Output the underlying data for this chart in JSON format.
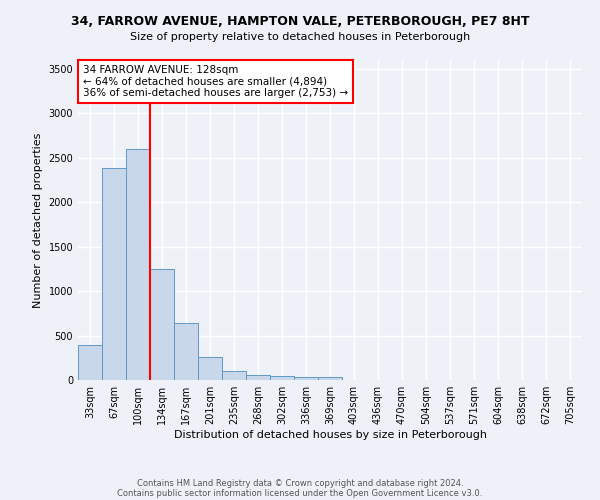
{
  "title_line1": "34, FARROW AVENUE, HAMPTON VALE, PETERBOROUGH, PE7 8HT",
  "title_line2": "Size of property relative to detached houses in Peterborough",
  "xlabel": "Distribution of detached houses by size in Peterborough",
  "ylabel": "Number of detached properties",
  "categories": [
    "33sqm",
    "67sqm",
    "100sqm",
    "134sqm",
    "167sqm",
    "201sqm",
    "235sqm",
    "268sqm",
    "302sqm",
    "336sqm",
    "369sqm",
    "403sqm",
    "436sqm",
    "470sqm",
    "504sqm",
    "537sqm",
    "571sqm",
    "604sqm",
    "638sqm",
    "672sqm",
    "705sqm"
  ],
  "values": [
    390,
    2390,
    2600,
    1250,
    640,
    255,
    105,
    60,
    50,
    35,
    30,
    0,
    0,
    0,
    0,
    0,
    0,
    0,
    0,
    0,
    0
  ],
  "bar_color": "#c8d8ea",
  "bar_edge_color": "#6098c8",
  "red_line_index": 3,
  "annotation_text": "34 FARROW AVENUE: 128sqm\n← 64% of detached houses are smaller (4,894)\n36% of semi-detached houses are larger (2,753) →",
  "annotation_box_color": "white",
  "annotation_box_edge": "red",
  "ylim": [
    0,
    3600
  ],
  "yticks": [
    0,
    500,
    1000,
    1500,
    2000,
    2500,
    3000,
    3500
  ],
  "footer_line1": "Contains HM Land Registry data © Crown copyright and database right 2024.",
  "footer_line2": "Contains public sector information licensed under the Open Government Licence v3.0.",
  "bg_color": "#eef2f8",
  "plot_bg_color": "#eef2f8",
  "grid_color": "white",
  "title1_fontsize": 9,
  "title2_fontsize": 8,
  "xlabel_fontsize": 8,
  "ylabel_fontsize": 8,
  "tick_fontsize": 7,
  "annot_fontsize": 7.5
}
